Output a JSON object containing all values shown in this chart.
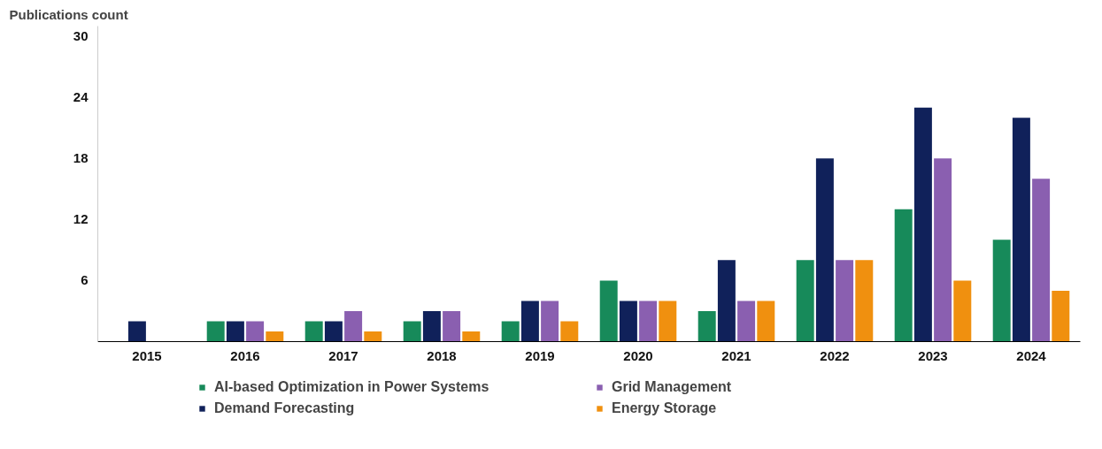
{
  "chart_data": {
    "type": "bar",
    "ylabel": "Publications count",
    "categories": [
      "2015",
      "2016",
      "2017",
      "2018",
      "2019",
      "2020",
      "2021",
      "2022",
      "2023",
      "2024"
    ],
    "series": [
      {
        "name": "AI-based Optimization in Power Systems",
        "color": "#178a5a",
        "values": [
          0,
          2,
          2,
          2,
          2,
          6,
          3,
          8,
          13,
          10
        ]
      },
      {
        "name": "Demand Forecasting",
        "color": "#10215a",
        "values": [
          2,
          2,
          2,
          3,
          4,
          4,
          8,
          18,
          23,
          22
        ]
      },
      {
        "name": "Grid Management",
        "color": "#8a5fb0",
        "values": [
          0,
          2,
          3,
          3,
          4,
          4,
          4,
          8,
          18,
          16
        ]
      },
      {
        "name": "Energy Storage",
        "color": "#f0900f",
        "values": [
          0,
          1,
          1,
          1,
          2,
          4,
          4,
          8,
          6,
          5
        ]
      }
    ],
    "ylim": [
      0,
      31
    ],
    "yticks": [
      6,
      12,
      18,
      24,
      30
    ],
    "grid": false,
    "legend": "bottom"
  }
}
